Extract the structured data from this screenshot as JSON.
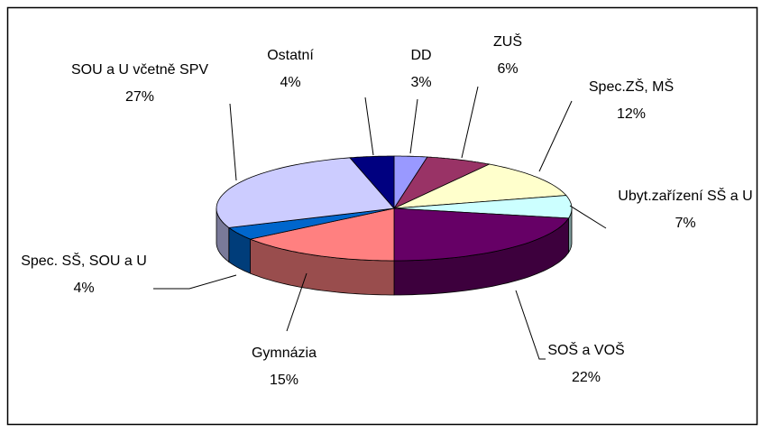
{
  "chart_data": {
    "type": "pie3d",
    "categories": [
      "DD",
      "ZUŠ",
      "Spec.ZŠ, MŠ",
      "Ubyt.zařízení SŠ a U",
      "SOŠ a VOŠ",
      "Gymnázia",
      "Spec. SŠ, SOU a U",
      "SOU a U včetně SPV",
      "Ostatní"
    ],
    "values": [
      3,
      6,
      12,
      7,
      22,
      15,
      4,
      27,
      4
    ],
    "value_labels": [
      "3%",
      "6%",
      "12%",
      "7%",
      "22%",
      "15%",
      "4%",
      "27%",
      "4%"
    ],
    "colors": [
      "#9999ff",
      "#993366",
      "#ffffcc",
      "#ccffff",
      "#660066",
      "#ff8080",
      "#0066cc",
      "#ccccff",
      "#000080"
    ]
  }
}
